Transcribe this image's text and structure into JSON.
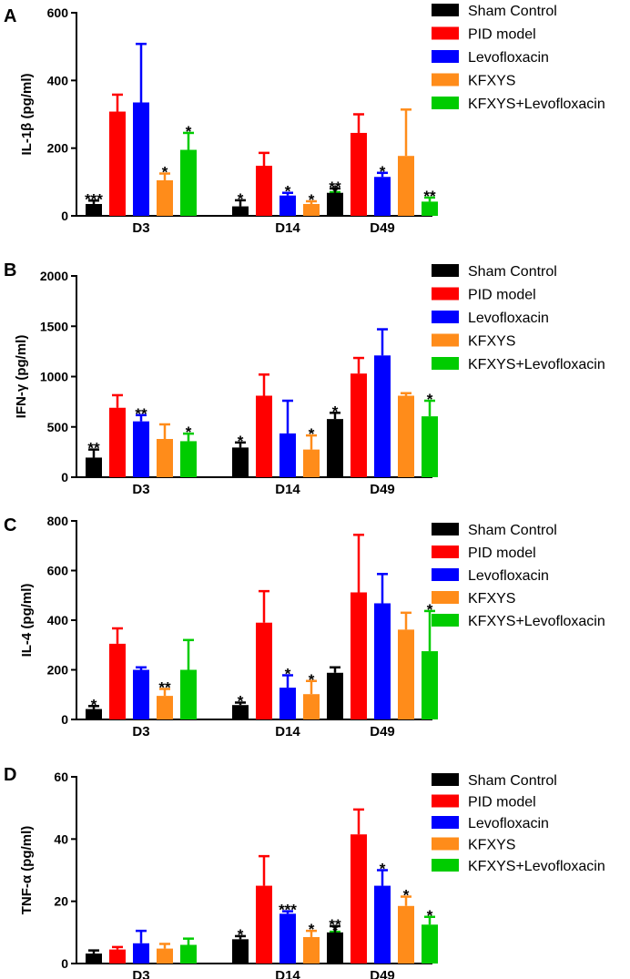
{
  "colors": {
    "Sham Control": "#000000",
    "PID model": "#ff0000",
    "Levofloxacin": "#0000ff",
    "KFXYS": "#ff8c1a",
    "KFXYS+Levofloxacin": "#00cc00"
  },
  "chart_data": [
    {
      "type": "bar",
      "panel": "A",
      "ylabel": "IL-1β  (pg/ml)",
      "ylim": [
        0,
        600
      ],
      "yticks": [
        "0",
        "200",
        "400",
        "600"
      ],
      "categories": [
        "D3",
        "D14",
        "D49"
      ],
      "legend": [
        "Sham Control",
        "PID model",
        "Levofloxacin",
        "KFXYS",
        "KFXYS+Levofloxacin"
      ],
      "series": [
        {
          "name": "Sham Control",
          "values": [
            35,
            28,
            68
          ],
          "errors": [
            10,
            18,
            13
          ],
          "stars": [
            "***",
            "*",
            "**"
          ]
        },
        {
          "name": "PID model",
          "values": [
            308,
            148,
            245
          ],
          "errors": [
            50,
            38,
            55
          ],
          "stars": [
            "",
            "",
            ""
          ]
        },
        {
          "name": "Levofloxacin",
          "values": [
            335,
            60,
            115
          ],
          "errors": [
            173,
            8,
            12
          ],
          "stars": [
            "",
            "*",
            "*"
          ]
        },
        {
          "name": "KFXYS",
          "values": [
            105,
            35,
            177
          ],
          "errors": [
            20,
            8,
            137
          ],
          "stars": [
            "*",
            "*",
            ""
          ]
        },
        {
          "name": "KFXYS+Levofloxacin",
          "values": [
            195,
            47,
            42
          ],
          "errors": [
            50,
            23,
            12
          ],
          "stars": [
            "*",
            "*",
            "**"
          ]
        }
      ]
    },
    {
      "type": "bar",
      "panel": "B",
      "ylabel": "IFN-γ  (pg/ml)",
      "ylim": [
        0,
        2000
      ],
      "yticks": [
        "0",
        "500",
        "1000",
        "1500",
        "2000"
      ],
      "categories": [
        "D3",
        "D14",
        "D49"
      ],
      "legend": [
        "Sham Control",
        "PID model",
        "Levofloxacin",
        "KFXYS",
        "KFXYS+Levofloxacin"
      ],
      "series": [
        {
          "name": "Sham Control",
          "values": [
            195,
            295,
            578
          ],
          "errors": [
            80,
            50,
            62
          ],
          "stars": [
            "**",
            "*",
            "*"
          ]
        },
        {
          "name": "PID model",
          "values": [
            690,
            810,
            1030
          ],
          "errors": [
            125,
            210,
            155
          ],
          "stars": [
            "",
            "",
            ""
          ]
        },
        {
          "name": "Levofloxacin",
          "values": [
            555,
            435,
            1210
          ],
          "errors": [
            62,
            325,
            260
          ],
          "stars": [
            "**",
            "",
            ""
          ]
        },
        {
          "name": "KFXYS",
          "values": [
            380,
            275,
            810
          ],
          "errors": [
            145,
            140,
            25
          ],
          "stars": [
            "",
            "*",
            ""
          ]
        },
        {
          "name": "KFXYS+Levofloxacin",
          "values": [
            358,
            348,
            605
          ],
          "errors": [
            75,
            70,
            155
          ],
          "stars": [
            "*",
            "*",
            "*"
          ]
        }
      ]
    },
    {
      "type": "bar",
      "panel": "C",
      "ylabel": "IL-4 (pg/ml)",
      "ylim": [
        0,
        800
      ],
      "yticks": [
        "0",
        "200",
        "400",
        "600",
        "800"
      ],
      "categories": [
        "D3",
        "D14",
        "D49"
      ],
      "legend": [
        "Sham Control",
        "PID model",
        "Levofloxacin",
        "KFXYS",
        "KFXYS+Levofloxacin"
      ],
      "series": [
        {
          "name": "Sham Control",
          "values": [
            42,
            58,
            188
          ],
          "errors": [
            12,
            10,
            22
          ],
          "stars": [
            "*",
            "*",
            ""
          ]
        },
        {
          "name": "PID model",
          "values": [
            305,
            390,
            512
          ],
          "errors": [
            62,
            127,
            232
          ],
          "stars": [
            "",
            "",
            ""
          ]
        },
        {
          "name": "Levofloxacin",
          "values": [
            200,
            128,
            468
          ],
          "errors": [
            10,
            50,
            118
          ],
          "stars": [
            "",
            "*",
            ""
          ]
        },
        {
          "name": "KFXYS",
          "values": [
            95,
            102,
            362
          ],
          "errors": [
            28,
            53,
            68
          ],
          "stars": [
            "**",
            "*",
            ""
          ]
        },
        {
          "name": "KFXYS+Levofloxacin",
          "values": [
            200,
            112,
            275
          ],
          "errors": [
            120,
            35,
            162
          ],
          "stars": [
            "",
            "*",
            "*"
          ]
        }
      ]
    },
    {
      "type": "bar",
      "panel": "D",
      "ylabel": "TNF-α  (pg/ml)",
      "ylim": [
        0,
        60
      ],
      "yticks": [
        "0",
        "20",
        "40",
        "60"
      ],
      "categories": [
        "D3",
        "D14",
        "D49"
      ],
      "legend": [
        "Sham Control",
        "PID model",
        "Levofloxacin",
        "KFXYS",
        "KFXYS+Levofloxacin"
      ],
      "series": [
        {
          "name": "Sham Control",
          "values": [
            3.2,
            7.8,
            10
          ],
          "errors": [
            1.0,
            1.0,
            2.0
          ],
          "stars": [
            "",
            "*",
            "**"
          ]
        },
        {
          "name": "PID model",
          "values": [
            4.5,
            25,
            41.5
          ],
          "errors": [
            0.8,
            9.5,
            8.0
          ],
          "stars": [
            "",
            "",
            ""
          ]
        },
        {
          "name": "Levofloxacin",
          "values": [
            6.5,
            16,
            25
          ],
          "errors": [
            4.0,
            0.8,
            5.0
          ],
          "stars": [
            "",
            "***",
            "*"
          ]
        },
        {
          "name": "KFXYS",
          "values": [
            4.8,
            8.5,
            18.5
          ],
          "errors": [
            1.5,
            2.0,
            3.0
          ],
          "stars": [
            "",
            "*",
            "*"
          ]
        },
        {
          "name": "KFXYS+Levofloxacin",
          "values": [
            6.0,
            8.2,
            12.5
          ],
          "errors": [
            2.0,
            2.0,
            2.5
          ],
          "stars": [
            "",
            "*",
            "*"
          ]
        }
      ]
    }
  ]
}
